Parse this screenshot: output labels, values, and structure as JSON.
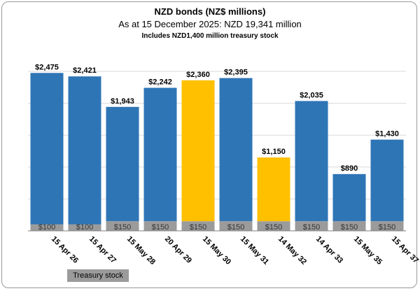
{
  "chart_data": {
    "type": "bar",
    "title": "NZD bonds (NZ$ millions)",
    "subtitle": "As at 15 December 2025: NZD 19,341 million",
    "subtitle2": "Includes NZD1,400 million treasury stock",
    "categories": [
      "15 Apr 26",
      "15 Apr 27",
      "15 May 28",
      "20 Apr 29",
      "15 May 30",
      "15 May 31",
      "14 May 32",
      "14 Apr 33",
      "15 May 35",
      "15 Apr 37"
    ],
    "series": [
      {
        "name": "Treasury stock",
        "values": [
          100,
          100,
          150,
          150,
          150,
          150,
          150,
          150,
          150,
          150
        ]
      }
    ],
    "totals": [
      2475,
      2421,
      1943,
      2242,
      2360,
      2395,
      1150,
      2035,
      890,
      1430
    ],
    "total_labels": [
      "$2,475",
      "$2,421",
      "$1,943",
      "$2,242",
      "$2,360",
      "$2,395",
      "$1,150",
      "$2,035",
      "$890",
      "$1,430"
    ],
    "treasury_labels": [
      "$100",
      "$100",
      "$150",
      "$150",
      "$150",
      "$150",
      "$150",
      "$150",
      "$150",
      "$150"
    ],
    "highlighted": [
      false,
      false,
      false,
      false,
      true,
      false,
      true,
      false,
      false,
      false
    ],
    "ylim": [
      0,
      2500
    ],
    "gridlines": [
      0,
      500,
      1000,
      1500,
      2000,
      2500
    ],
    "grid": true,
    "legend": "bottom-left",
    "colors": {
      "bar": "#2e75b6",
      "highlight": "#ffc000",
      "treasury": "#9b9b9b",
      "grid": "#d9d9d9",
      "axis": "#7f7f7f"
    }
  }
}
